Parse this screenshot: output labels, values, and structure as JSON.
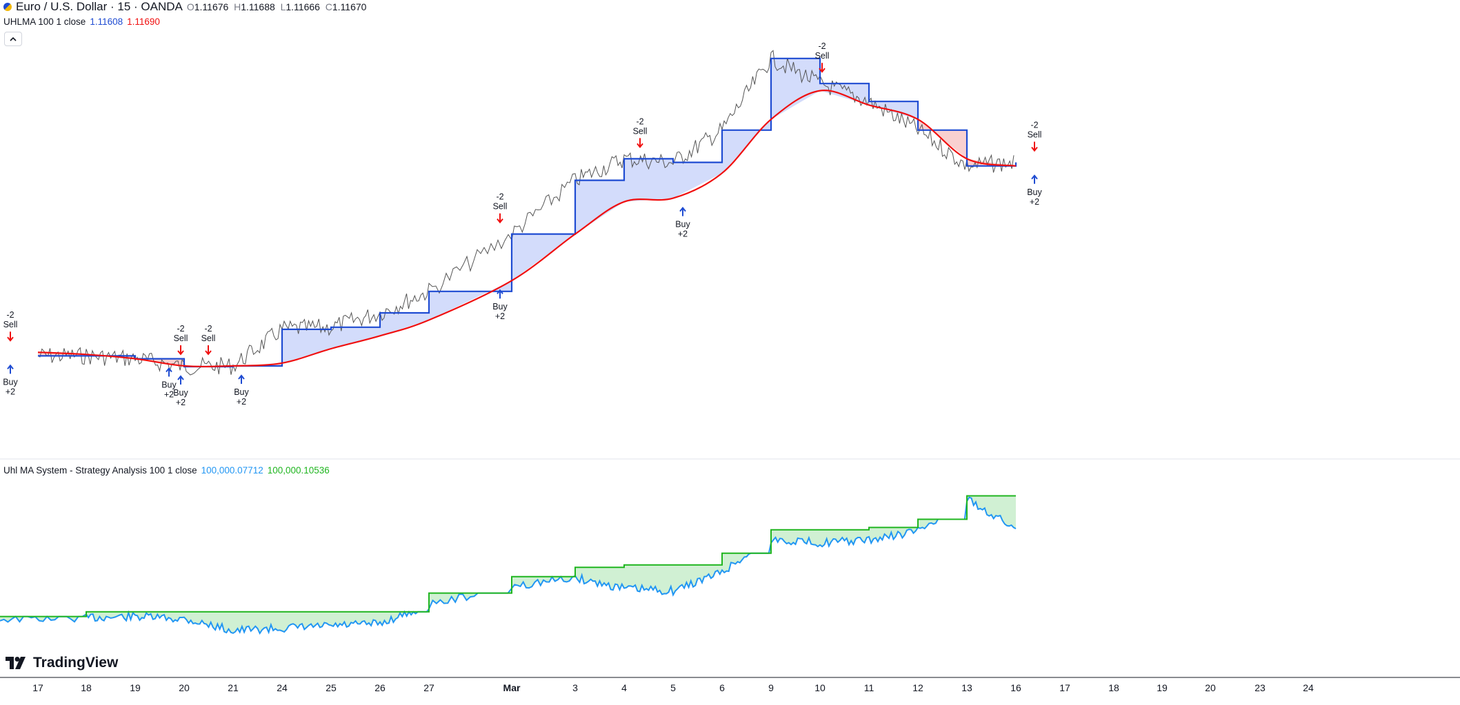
{
  "header": {
    "symbol": "Euro / U.S. Dollar · 15 · OANDA",
    "open_label": "O",
    "open": "1.11676",
    "high_label": "H",
    "high": "1.11688",
    "low_label": "L",
    "low": "1.11666",
    "close_label": "C",
    "close": "1.11670"
  },
  "indicator1": {
    "name": "UHLMA 100 1 close",
    "value_blue": "1.11608",
    "value_red": "1.11690"
  },
  "indicator2": {
    "name": "Uhl MA System - Strategy Analysis 100 1 close",
    "value_blue": "100,000.07712",
    "value_green": "100,000.10536"
  },
  "brand": "TradingView",
  "colors": {
    "blue_line": "#1e4bd2",
    "red_line": "#f00f0f",
    "blue_fill": "#d3dcfb",
    "red_fill": "#f9d0d0",
    "equity_blue": "#2196f3",
    "equity_green": "#1fb51f",
    "green_fill": "#d0f0d3",
    "price": "#555555"
  },
  "chart_data": [
    {
      "type": "line",
      "title": "Euro / U.S. Dollar · 15 · OANDA with UHLMA 100 1 close",
      "x": [
        "17",
        "18",
        "19",
        "20",
        "21",
        "24",
        "25",
        "26",
        "27",
        "Mar",
        "3",
        "4",
        "5",
        "6",
        "9",
        "10",
        "11",
        "12",
        "13",
        "16"
      ],
      "series": [
        {
          "name": "UHLMA 100 1 close (blue)",
          "color": "#1e4bd2",
          "values": [
            0.64,
            0.64,
            0.636,
            0.625,
            0.626,
            0.677,
            0.68,
            0.7,
            0.73,
            0.81,
            0.885,
            0.915,
            0.91,
            0.955,
            1.055,
            1.02,
            0.995,
            0.955,
            0.905,
            0.91
          ]
        },
        {
          "name": "UHLMA 100 1 close (red)",
          "color": "#f00f0f",
          "values": [
            0.645,
            0.642,
            0.636,
            0.626,
            0.626,
            0.63,
            0.65,
            0.668,
            0.69,
            0.745,
            0.81,
            0.855,
            0.86,
            0.895,
            0.97,
            1.01,
            0.99,
            0.97,
            0.915,
            0.905
          ]
        }
      ],
      "signals": [
        {
          "x": "17",
          "labels": [
            "-2",
            "Sell"
          ]
        },
        {
          "x": "17",
          "labels": [
            "Buy",
            "+2"
          ]
        },
        {
          "x": "20",
          "labels": [
            "-2",
            "Sell"
          ]
        },
        {
          "x": "20",
          "labels": [
            "-2",
            "Sell"
          ]
        },
        {
          "x": "19",
          "labels": [
            "Buy",
            "+2"
          ]
        },
        {
          "x": "20",
          "labels": [
            "Buy",
            "+2"
          ]
        },
        {
          "x": "21",
          "labels": [
            "Buy",
            "+2"
          ]
        },
        {
          "x": "Mar",
          "labels": [
            "-2",
            "Sell"
          ]
        },
        {
          "x": "Mar",
          "labels": [
            "Buy",
            "+2"
          ]
        },
        {
          "x": "4",
          "labels": [
            "-2",
            "Sell"
          ]
        },
        {
          "x": "5",
          "labels": [
            "Buy",
            "+2"
          ]
        },
        {
          "x": "10",
          "labels": [
            "-2",
            "Sell"
          ]
        },
        {
          "x": "16",
          "labels": [
            "-2",
            "Sell"
          ]
        },
        {
          "x": "16",
          "labels": [
            "Buy",
            "+2"
          ]
        }
      ]
    },
    {
      "type": "line",
      "title": "Uhl MA System - Strategy Analysis 100 1 close",
      "x": [
        "17",
        "18",
        "19",
        "20",
        "21",
        "24",
        "25",
        "26",
        "27",
        "Mar",
        "3",
        "4",
        "5",
        "6",
        "9",
        "10",
        "11",
        "12",
        "13",
        "16"
      ],
      "series": [
        {
          "name": "Equity (blue)",
          "color": "#2196f3",
          "values": [
            100000.0,
            100000.001,
            100000.002,
            100000.0,
            99999.99,
            99999.992,
            99999.994,
            99999.996,
            100000.012,
            100000.028,
            100000.035,
            100000.026,
            100000.024,
            100000.04,
            100000.068,
            100000.065,
            100000.067,
            100000.075,
            100000.102,
            100000.077
          ]
        },
        {
          "name": "Equity peak (green)",
          "color": "#1fb51f",
          "values": [
            100000.002,
            100000.006,
            100000.006,
            100000.006,
            100000.006,
            100000.006,
            100000.006,
            100000.006,
            100000.022,
            100000.036,
            100000.044,
            100000.046,
            100000.046,
            100000.056,
            100000.076,
            100000.076,
            100000.078,
            100000.085,
            100000.105,
            100000.105
          ]
        }
      ]
    }
  ],
  "x_axis": {
    "ticks": [
      "17",
      "18",
      "19",
      "20",
      "21",
      "24",
      "25",
      "26",
      "27",
      "Mar",
      "3",
      "4",
      "5",
      "6",
      "9",
      "10",
      "11",
      "12",
      "13",
      "16",
      "17",
      "18",
      "19",
      "20",
      "23",
      "24"
    ]
  }
}
